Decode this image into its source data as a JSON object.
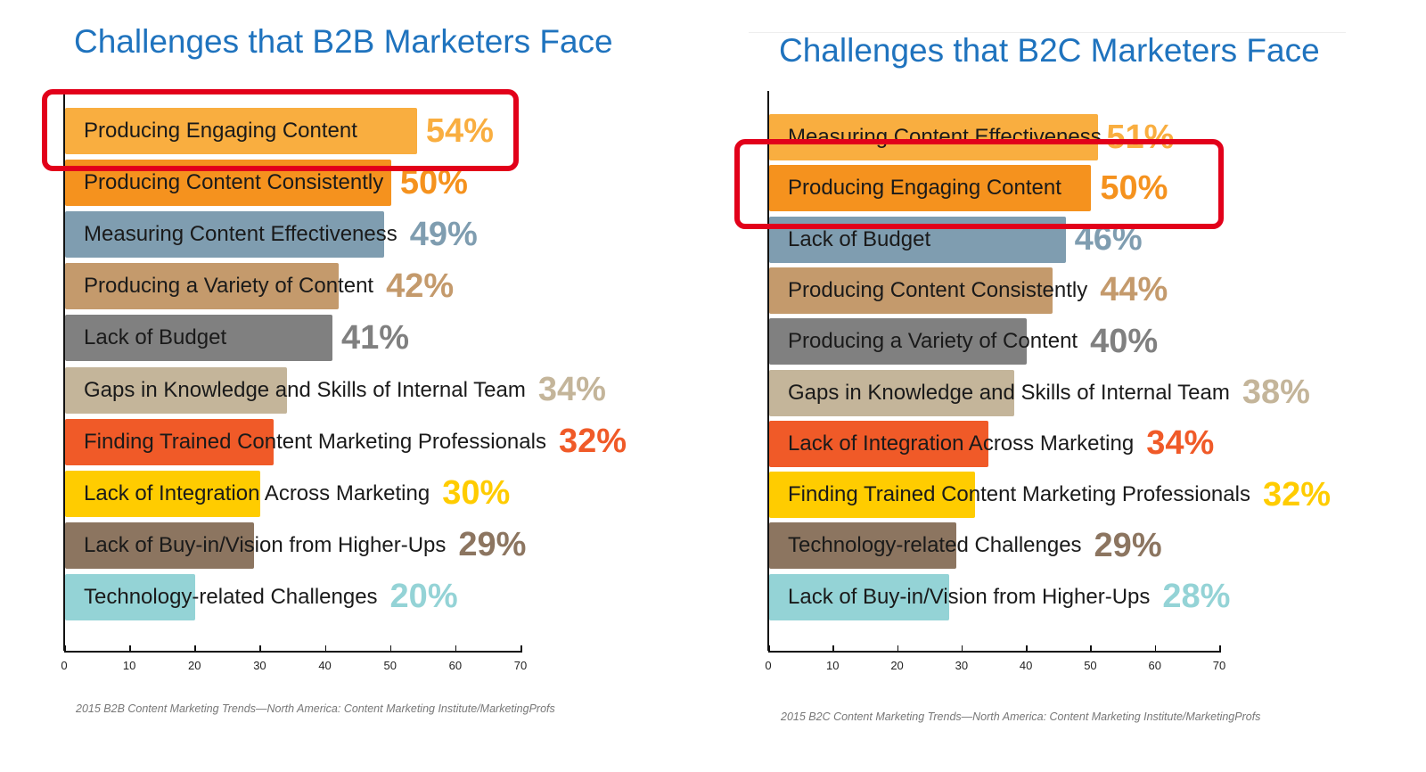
{
  "chart_data": [
    {
      "type": "bar",
      "orientation": "horizontal",
      "title": "Challenges that B2B Marketers Face",
      "categories": [
        "Producing Engaging Content",
        "Producing Content Consistently",
        "Measuring Content Effectiveness",
        "Producing a Variety of Content",
        "Lack of Budget",
        "Gaps in Knowledge and Skills of Internal Team",
        "Finding Trained Content Marketing Professionals",
        "Lack of Integration Across Marketing",
        "Lack of Buy-in/Vision from Higher-Ups",
        "Technology-related Challenges"
      ],
      "values": [
        54,
        50,
        49,
        42,
        41,
        34,
        32,
        30,
        29,
        20
      ],
      "value_labels": [
        "54%",
        "50%",
        "49%",
        "42%",
        "41%",
        "34%",
        "32%",
        "30%",
        "29%",
        "20%"
      ],
      "colors": [
        "#f9ae40",
        "#f5921e",
        "#7f9db0",
        "#c49a6c",
        "#808080",
        "#c4b59a",
        "#f05a28",
        "#ffcc00",
        "#8c7560",
        "#94d3d6"
      ],
      "xlim": [
        0,
        70
      ],
      "xticks": [
        "0",
        "10",
        "20",
        "30",
        "40",
        "50",
        "60",
        "70"
      ],
      "highlighted": "Producing Engaging Content",
      "source": "2015 B2B Content Marketing Trends—North America: Content Marketing Institute/MarketingProfs"
    },
    {
      "type": "bar",
      "orientation": "horizontal",
      "title": "Challenges that B2C Marketers Face",
      "categories": [
        "Measuring Content Effectiveness",
        "Producing Engaging Content",
        "Lack of Budget",
        "Producing Content Consistently",
        "Producing a Variety of Content",
        "Gaps in Knowledge and Skills of Internal Team",
        "Lack of Integration Across Marketing",
        "Finding Trained Content Marketing Professionals",
        "Technology-related Challenges",
        "Lack of Buy-in/Vision from Higher-Ups"
      ],
      "values": [
        51,
        50,
        46,
        44,
        40,
        38,
        34,
        32,
        29,
        28
      ],
      "value_labels": [
        "51%",
        "50%",
        "46%",
        "44%",
        "40%",
        "38%",
        "34%",
        "32%",
        "29%",
        "28%"
      ],
      "colors": [
        "#f9ae40",
        "#f5921e",
        "#7f9db0",
        "#c49a6c",
        "#808080",
        "#c4b59a",
        "#f05a28",
        "#ffcc00",
        "#8c7560",
        "#94d3d6"
      ],
      "xlim": [
        0,
        70
      ],
      "xticks": [
        "0",
        "10",
        "20",
        "30",
        "40",
        "50",
        "60",
        "70"
      ],
      "highlighted": "Producing Engaging Content",
      "source": "2015 B2C Content Marketing Trends—North America: Content Marketing Institute/MarketingProfs"
    }
  ]
}
